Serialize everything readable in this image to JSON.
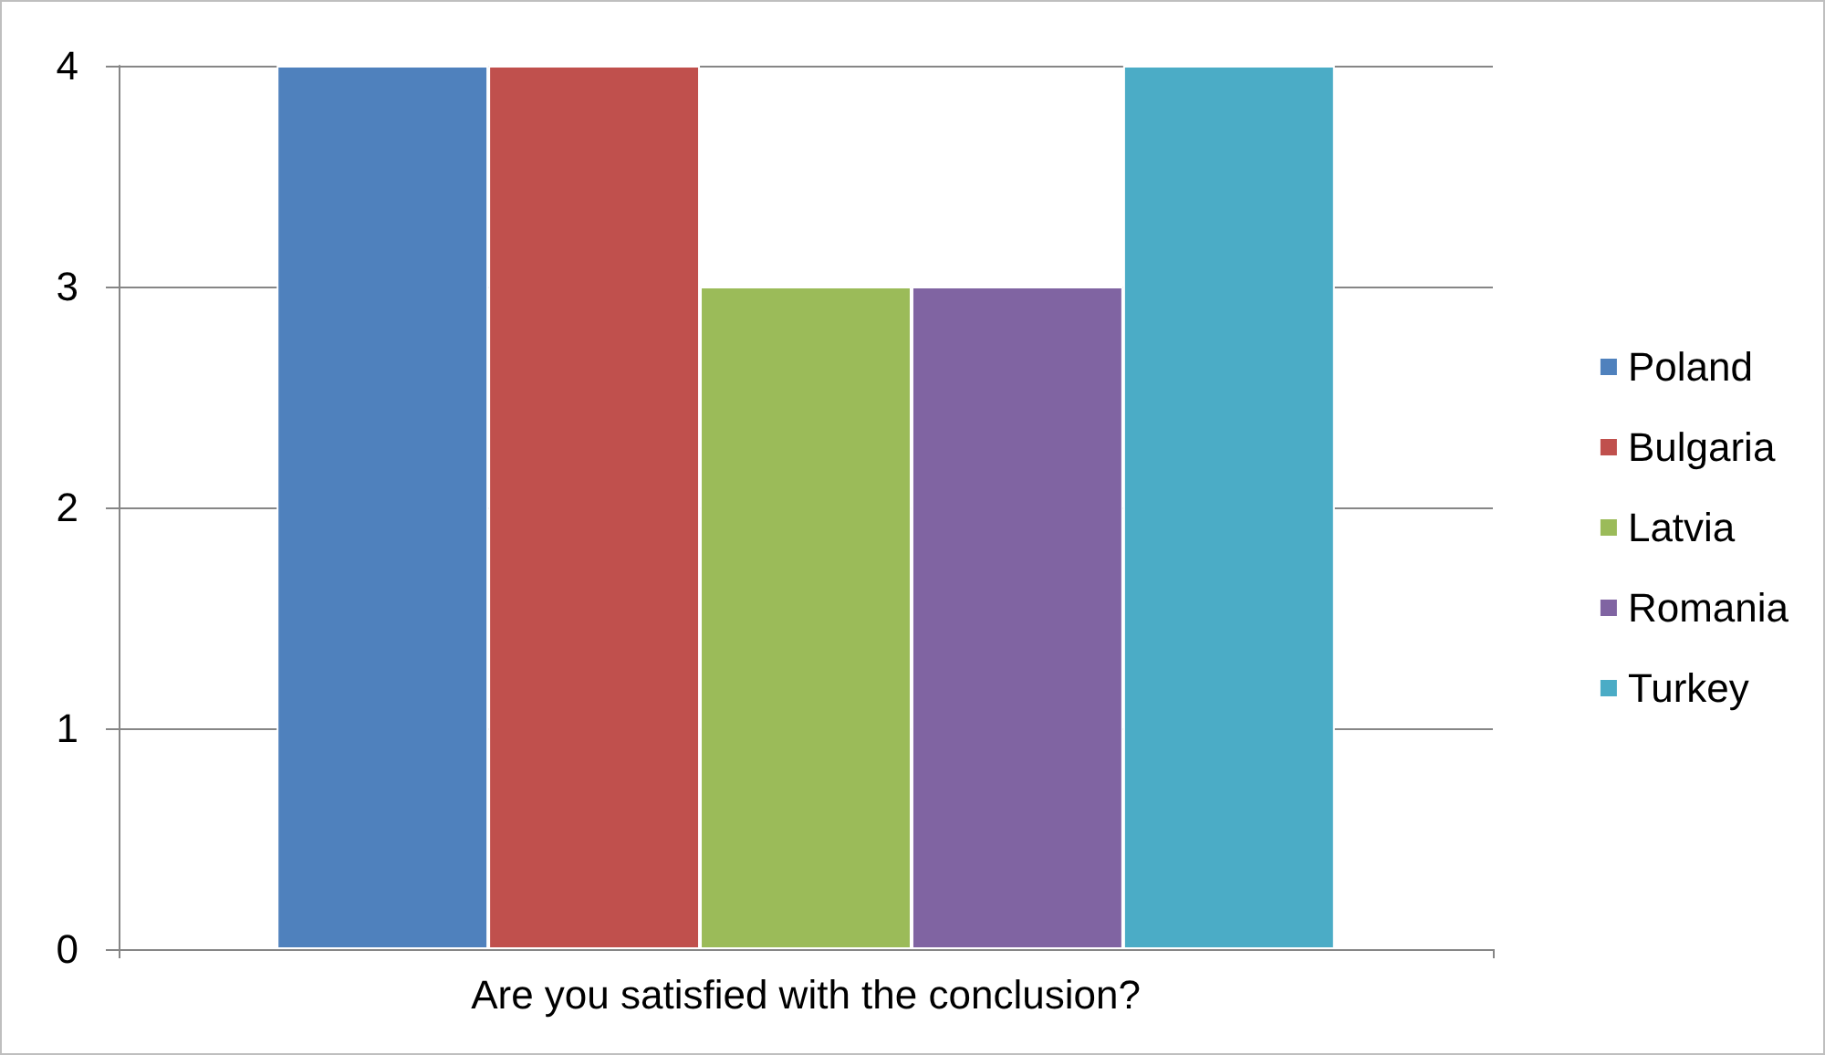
{
  "chart_data": {
    "type": "bar",
    "categories": [
      "Are you satisfied with the conclusion?"
    ],
    "series": [
      {
        "name": "Poland",
        "color": "#4f81bd",
        "values": [
          4
        ]
      },
      {
        "name": "Bulgaria",
        "color": "#c0504d",
        "values": [
          4
        ]
      },
      {
        "name": "Latvia",
        "color": "#9bbb59",
        "values": [
          3
        ]
      },
      {
        "name": "Romania",
        "color": "#8064a2",
        "values": [
          3
        ]
      },
      {
        "name": "Turkey",
        "color": "#4bacc6",
        "values": [
          4
        ]
      }
    ],
    "ylim": [
      0,
      4
    ],
    "yticks": [
      0,
      1,
      2,
      3,
      4
    ],
    "grid": "y",
    "legend": "right"
  }
}
